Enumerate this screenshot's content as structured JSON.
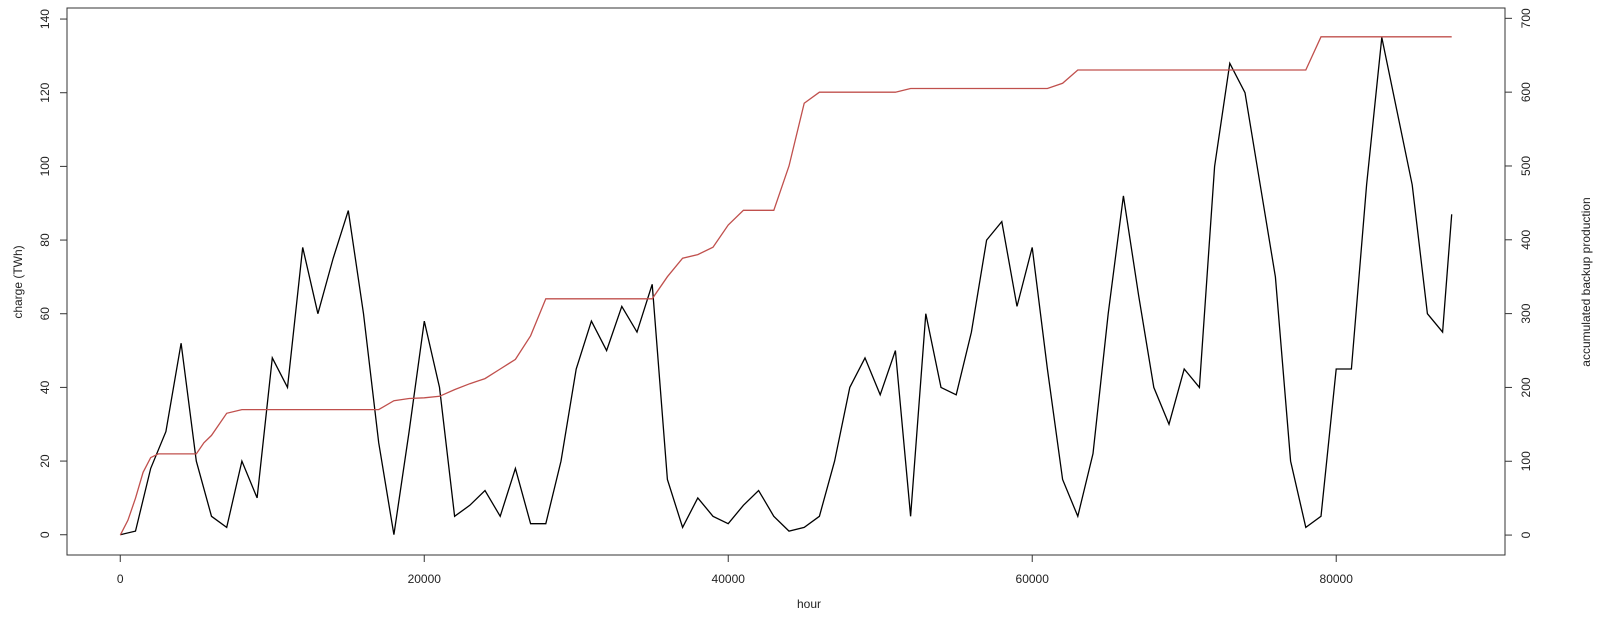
{
  "chart_data": {
    "type": "line",
    "xlabel": "hour",
    "ylabel": "charge (TWh)",
    "y2label": "accumulated backup production",
    "xlim": [
      -3504,
      91104
    ],
    "xticks": [
      0,
      20000,
      40000,
      60000,
      80000
    ],
    "ylim": [
      -5.5,
      143
    ],
    "yticks": [
      0,
      20,
      40,
      60,
      80,
      100,
      120,
      140
    ],
    "y2lim": [
      -27,
      714
    ],
    "y2ticks": [
      0,
      100,
      200,
      300,
      400,
      500,
      600,
      700
    ],
    "series": [
      {
        "color": "#000000",
        "x": [
          0,
          1000,
          2000,
          3000,
          4000,
          5000,
          6000,
          7000,
          8000,
          9000,
          10000,
          11000,
          12000,
          13000,
          14000,
          15000,
          16000,
          17000,
          18000,
          19000,
          20000,
          21000,
          22000,
          23000,
          24000,
          25000,
          26000,
          27000,
          28000,
          29000,
          30000,
          31000,
          32000,
          33000,
          34000,
          35000,
          36000,
          37000,
          38000,
          39000,
          40000,
          41000,
          42000,
          43000,
          44000,
          45000,
          46000,
          47000,
          48000,
          49000,
          50000,
          51000,
          52000,
          53000,
          54000,
          55000,
          56000,
          57000,
          58000,
          59000,
          60000,
          61000,
          62000,
          63000,
          64000,
          65000,
          66000,
          67000,
          68000,
          69000,
          70000,
          71000,
          72000,
          73000,
          74000,
          75000,
          76000,
          77000,
          78000,
          79000,
          80000,
          81000,
          82000,
          83000,
          84000,
          85000,
          86000,
          87000,
          87600
        ],
        "values": [
          0,
          1,
          18,
          28,
          52,
          20,
          5,
          2,
          20,
          10,
          48,
          40,
          78,
          60,
          75,
          88,
          60,
          25,
          0,
          28,
          58,
          40,
          5,
          8,
          12,
          5,
          18,
          3,
          3,
          20,
          45,
          58,
          50,
          62,
          55,
          68,
          15,
          2,
          10,
          5,
          3,
          8,
          12,
          5,
          1,
          2,
          5,
          20,
          40,
          48,
          38,
          50,
          5,
          60,
          40,
          38,
          55,
          80,
          85,
          62,
          78,
          45,
          15,
          5,
          22,
          60,
          92,
          65,
          40,
          30,
          45,
          40,
          100,
          128,
          120,
          95,
          70,
          20,
          2,
          5,
          45,
          45,
          95,
          135,
          115,
          95,
          60,
          55,
          87
        ]
      },
      {
        "color": "#c0504d",
        "axis": "y2",
        "x": [
          0,
          500,
          1000,
          1500,
          2000,
          2500,
          5000,
          5500,
          6000,
          7000,
          8000,
          17000,
          18000,
          19000,
          20000,
          21000,
          22000,
          23000,
          24000,
          25000,
          26000,
          27000,
          28000,
          35000,
          36000,
          37000,
          38000,
          39000,
          40000,
          41000,
          43000,
          44000,
          45000,
          46000,
          51000,
          52000,
          61000,
          62000,
          63000,
          78000,
          79000,
          87600
        ],
        "values": [
          0,
          20,
          50,
          85,
          105,
          110,
          110,
          125,
          135,
          165,
          170,
          170,
          182,
          185,
          186,
          188,
          197,
          205,
          212,
          225,
          238,
          270,
          320,
          320,
          350,
          375,
          380,
          390,
          420,
          440,
          440,
          500,
          585,
          600,
          600,
          605,
          605,
          612,
          630,
          630,
          675,
          675
        ]
      }
    ]
  }
}
